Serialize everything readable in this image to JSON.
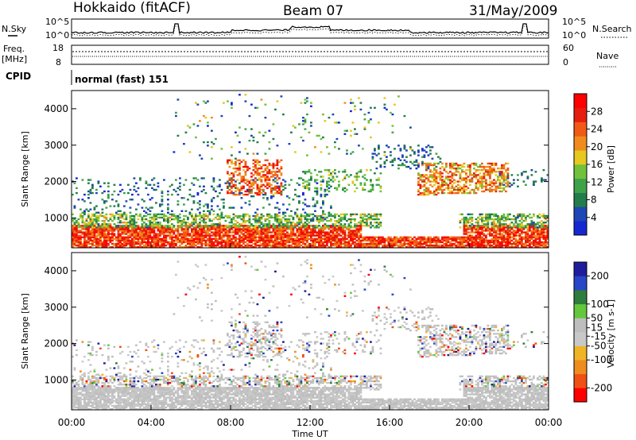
{
  "header": {
    "station": "Hokkaido (fitACF)",
    "beam": "Beam 07",
    "date": "31/May/2009"
  },
  "top_panels": {
    "nsky_label": "N.Sky",
    "nsearch_label": "N.Search",
    "freq_label": "Freq.",
    "freq_unit": "[MHz]",
    "nave_label": "Nave",
    "cpid_label": "CPID",
    "cpid_text": "normal (fast) 151",
    "noise_ticks": [
      "10^5",
      "10^0"
    ],
    "freq_ticks": [
      "18",
      "8"
    ],
    "nave_ticks": [
      "60",
      "0"
    ]
  },
  "colors": {
    "power_scale": [
      "#1428d2",
      "#1e46b4",
      "#237d4b",
      "#3ea24a",
      "#6fc23a",
      "#e6c81e",
      "#f08c1e",
      "#f05a14",
      "#e61e0f",
      "#ff0000"
    ],
    "velocity_scale": [
      "#1e1e9c",
      "#2846c8",
      "#2e7d3c",
      "#64c83c",
      "#bebebe",
      "#c8c8c8",
      "#f0b428",
      "#f08c1e",
      "#f05014",
      "#ff0000"
    ]
  },
  "chart_data": [
    {
      "type": "heatmap",
      "panel": "power",
      "ylabel": "Slant Range [km]",
      "xlabel": "",
      "ylim": [
        180,
        4500
      ],
      "y_ticks": [
        1000,
        2000,
        3000,
        4000
      ],
      "colorbar_label": "Power [dB]",
      "colorbar_ticks": [
        4,
        8,
        12,
        16,
        20,
        24,
        28
      ],
      "colorbar_range": [
        0,
        32
      ],
      "regions": [
        {
          "t": [
            0,
            24
          ],
          "r": [
            200,
            800
          ],
          "level": 28,
          "desc": "strong near-range ground scatter"
        },
        {
          "t": [
            0,
            14
          ],
          "r": [
            800,
            1100
          ],
          "level": 12
        },
        {
          "t": [
            7.5,
            12.5
          ],
          "r": [
            1500,
            2500
          ],
          "level": 26
        },
        {
          "t": [
            17.5,
            22
          ],
          "r": [
            1700,
            2500
          ],
          "level": 24
        },
        {
          "t": [
            12,
            15
          ],
          "r": [
            1800,
            2200
          ],
          "level": 16
        },
        {
          "t": [
            16,
            18
          ],
          "r": [
            2500,
            2900
          ],
          "level": 8
        }
      ]
    },
    {
      "type": "heatmap",
      "panel": "velocity",
      "ylabel": "Slant Range [km]",
      "xlabel": "Time UT",
      "ylim": [
        180,
        4500
      ],
      "y_ticks": [
        1000,
        2000,
        3000,
        4000
      ],
      "x_ticks": [
        "00:00",
        "04:00",
        "08:00",
        "12:00",
        "16:00",
        "20:00",
        "00:00"
      ],
      "colorbar_label": "Velocity [m s-1]",
      "colorbar_ticks": [
        200,
        100,
        50,
        15,
        -15,
        -50,
        -100,
        -200
      ],
      "colorbar_range": [
        -250,
        250
      ]
    }
  ]
}
